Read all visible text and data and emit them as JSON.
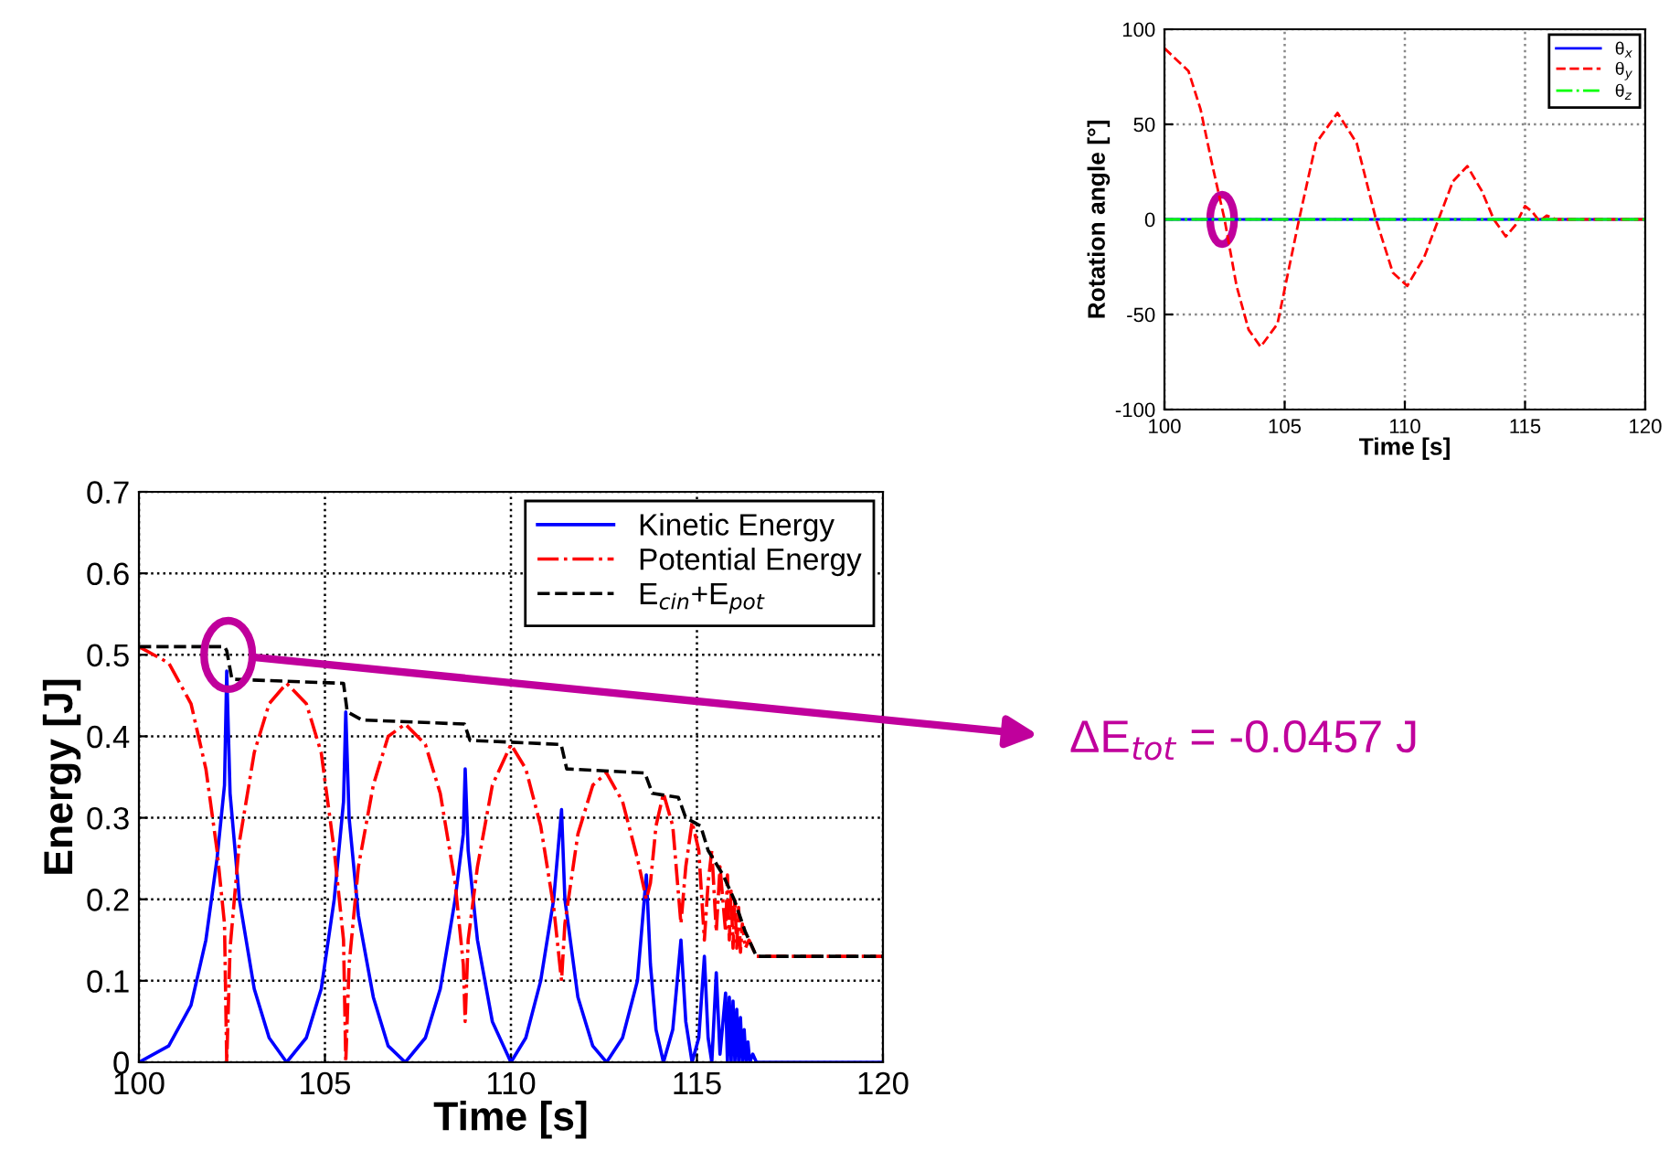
{
  "chart_data": [
    {
      "type": "line",
      "xlabel": "Time [s]",
      "ylabel": "Rotation angle [°]",
      "xlim": [
        100,
        120
      ],
      "ylim": [
        -100,
        100
      ],
      "xticks": [
        100,
        105,
        110,
        115,
        120
      ],
      "yticks": [
        -100,
        -50,
        0,
        50,
        100
      ],
      "grid": true,
      "legend": "top right",
      "marker": "none",
      "series": [
        {
          "name": "θ$_{x}$",
          "color": "#0000ff",
          "line_style": "solid",
          "x": [
            100,
            120
          ],
          "values": [
            0,
            0
          ]
        },
        {
          "name": "θ$_{y}$",
          "color": "#ff0000",
          "line_style": "dashed",
          "x": [
            100,
            101,
            101.5,
            102,
            102.5,
            103,
            103.5,
            104,
            104.7,
            105.6,
            106.3,
            107.2,
            108,
            108.8,
            109.5,
            110.1,
            110.8,
            111.4,
            112,
            112.6,
            113.2,
            113.7,
            114.2,
            114.6,
            115,
            115.3,
            115.6,
            115.9,
            116.3,
            120
          ],
          "values": [
            90,
            78,
            58,
            28,
            0,
            -35,
            -58,
            -67,
            -55,
            0,
            40,
            56,
            40,
            0,
            -28,
            -35,
            -20,
            0,
            20,
            28,
            15,
            0,
            -9,
            -3,
            7,
            4,
            -1,
            2,
            0,
            0
          ]
        },
        {
          "name": "θ$_{z}$",
          "color": "#00ff00",
          "line_style": "dashdot",
          "x": [
            100,
            120
          ],
          "values": [
            0,
            0
          ]
        }
      ]
    },
    {
      "type": "line",
      "xlabel": "Time [s]",
      "ylabel": "Energy [J]",
      "xlim": [
        100,
        120
      ],
      "ylim": [
        0,
        0.7
      ],
      "xticks": [
        100,
        105,
        110,
        115,
        120
      ],
      "yticks": [
        0,
        0.1,
        0.2,
        0.3,
        0.4,
        0.5,
        0.6,
        0.7
      ],
      "grid": true,
      "legend": "top right",
      "marker": "none",
      "annotations": [
        "ΔE$_{tot}$ = -0.0457 J"
      ],
      "series": [
        {
          "name": "Kinetic Energy",
          "color": "#0000ff",
          "line_style": "solid",
          "x": [
            100,
            100.8,
            101.4,
            101.8,
            102.1,
            102.3,
            102.36,
            102.45,
            102.7,
            103.1,
            103.5,
            103.97,
            104.5,
            104.9,
            105.25,
            105.5,
            105.56,
            105.65,
            105.9,
            106.3,
            106.7,
            107.16,
            107.7,
            108.1,
            108.5,
            108.72,
            108.77,
            108.85,
            109.1,
            109.5,
            110.0,
            110.4,
            110.8,
            111.15,
            111.36,
            111.45,
            111.8,
            112.2,
            112.57,
            113.0,
            113.4,
            113.64,
            113.75,
            113.9,
            114.1,
            114.35,
            114.57,
            114.7,
            114.87,
            115.05,
            115.2,
            115.3,
            115.4,
            115.52,
            115.62,
            115.77,
            115.82,
            115.87,
            115.92,
            115.97,
            116.02,
            116.07,
            116.12,
            116.17,
            116.22,
            116.27,
            116.32,
            116.37,
            116.42,
            116.5,
            116.6,
            120
          ],
          "values": [
            0,
            0.02,
            0.07,
            0.15,
            0.25,
            0.34,
            0.48,
            0.33,
            0.2,
            0.09,
            0.03,
            0,
            0.03,
            0.09,
            0.2,
            0.32,
            0.43,
            0.3,
            0.18,
            0.08,
            0.02,
            0,
            0.03,
            0.09,
            0.2,
            0.28,
            0.36,
            0.26,
            0.15,
            0.05,
            0,
            0.03,
            0.1,
            0.2,
            0.31,
            0.2,
            0.08,
            0.02,
            0,
            0.03,
            0.1,
            0.23,
            0.12,
            0.04,
            0,
            0.04,
            0.15,
            0.05,
            0,
            0.03,
            0.13,
            0.03,
            0,
            0.11,
            0.01,
            0.085,
            0,
            0.08,
            0,
            0.075,
            0,
            0.065,
            0,
            0.055,
            0,
            0.04,
            0,
            0.025,
            0,
            0.01,
            0,
            0
          ]
        },
        {
          "name": "Potential Energy",
          "color": "#ff0000",
          "line_style": "dashdot",
          "x": [
            100,
            100.8,
            101.4,
            101.8,
            102.1,
            102.3,
            102.36,
            102.45,
            102.7,
            103.1,
            103.5,
            103.97,
            104.5,
            104.9,
            105.25,
            105.5,
            105.56,
            105.65,
            105.9,
            106.3,
            106.7,
            107.16,
            107.7,
            108.1,
            108.5,
            108.72,
            108.77,
            108.85,
            109.1,
            109.5,
            110.0,
            110.4,
            110.8,
            111.15,
            111.36,
            111.45,
            111.8,
            112.2,
            112.57,
            113.0,
            113.4,
            113.64,
            113.75,
            113.9,
            114.1,
            114.35,
            114.57,
            114.7,
            114.87,
            115.05,
            115.2,
            115.3,
            115.4,
            115.52,
            115.62,
            115.77,
            115.82,
            115.87,
            115.92,
            115.97,
            116.02,
            116.07,
            116.12,
            116.17,
            116.22,
            116.3,
            116.4,
            116.6,
            120
          ],
          "values": [
            0.51,
            0.49,
            0.44,
            0.36,
            0.26,
            0.17,
            0,
            0.14,
            0.27,
            0.38,
            0.44,
            0.465,
            0.44,
            0.38,
            0.26,
            0.15,
            0,
            0.12,
            0.24,
            0.34,
            0.4,
            0.415,
            0.39,
            0.33,
            0.22,
            0.12,
            0.05,
            0.15,
            0.24,
            0.34,
            0.39,
            0.36,
            0.29,
            0.19,
            0.1,
            0.17,
            0.28,
            0.34,
            0.355,
            0.32,
            0.25,
            0.2,
            0.22,
            0.29,
            0.33,
            0.29,
            0.17,
            0.24,
            0.295,
            0.26,
            0.15,
            0.22,
            0.26,
            0.16,
            0.24,
            0.16,
            0.23,
            0.15,
            0.21,
            0.14,
            0.2,
            0.14,
            0.19,
            0.135,
            0.17,
            0.14,
            0.15,
            0.13,
            0.13
          ]
        },
        {
          "name": "E$_{cin}$+E$_{pot}$",
          "color": "#000000",
          "line_style": "dashed",
          "x": [
            100,
            102.3,
            102.36,
            102.5,
            105.5,
            105.6,
            106,
            108.75,
            108.9,
            111.35,
            111.5,
            113.6,
            113.8,
            114.5,
            114.7,
            115.1,
            115.3,
            115.7,
            116,
            116.3,
            116.6,
            120
          ],
          "values": [
            0.51,
            0.51,
            0.505,
            0.47,
            0.465,
            0.43,
            0.42,
            0.415,
            0.395,
            0.39,
            0.36,
            0.355,
            0.33,
            0.325,
            0.3,
            0.29,
            0.26,
            0.23,
            0.2,
            0.16,
            0.13,
            0.13
          ]
        }
      ]
    }
  ]
}
